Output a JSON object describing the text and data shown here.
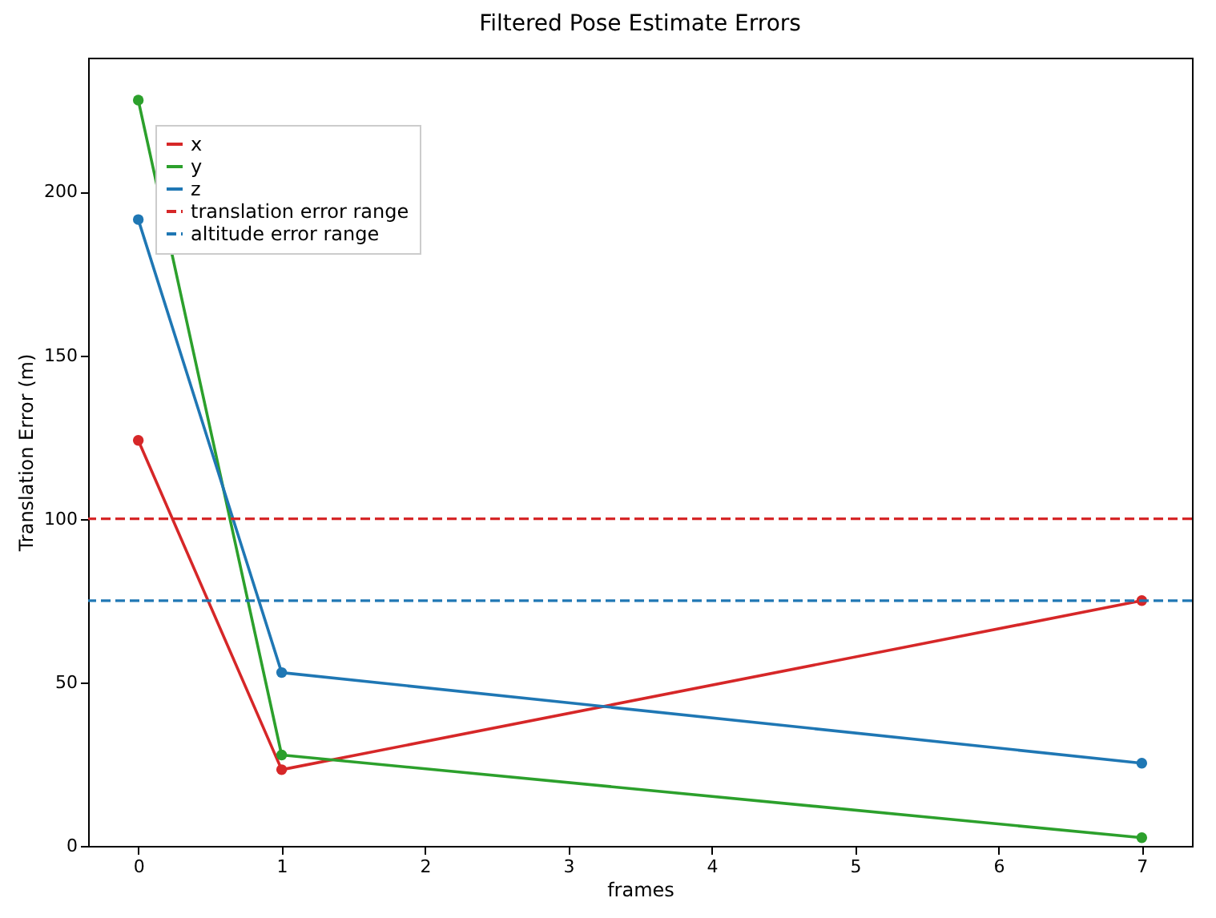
{
  "chart_data": {
    "type": "line",
    "title": "Filtered Pose Estimate Errors",
    "xlabel": "frames",
    "ylabel": "Translation Error (m)",
    "x": [
      0,
      1,
      7
    ],
    "series": [
      {
        "name": "x",
        "color": "#d62728",
        "values": [
          124,
          23.3,
          75
        ]
      },
      {
        "name": "y",
        "color": "#2ca02c",
        "values": [
          228,
          27.8,
          2.5
        ]
      },
      {
        "name": "z",
        "color": "#1f77b4",
        "values": [
          191.5,
          53,
          25.3
        ]
      }
    ],
    "ref_lines": [
      {
        "axis": "y",
        "value": 100,
        "label": "translation error range",
        "color": "#d62728",
        "line_style": "dashed"
      },
      {
        "axis": "y",
        "value": 75,
        "label": "altitude error range",
        "color": "#1f77b4",
        "line_style": "dashed"
      }
    ],
    "xlim": [
      -0.35,
      7.35
    ],
    "xticks": [
      0,
      1,
      2,
      3,
      4,
      5,
      6,
      7
    ],
    "ylim": [
      0,
      241
    ],
    "yticks": [
      0,
      50,
      100,
      150,
      200
    ],
    "grid": false,
    "legend": "top left",
    "marker": "circle",
    "line_style": "solid"
  }
}
